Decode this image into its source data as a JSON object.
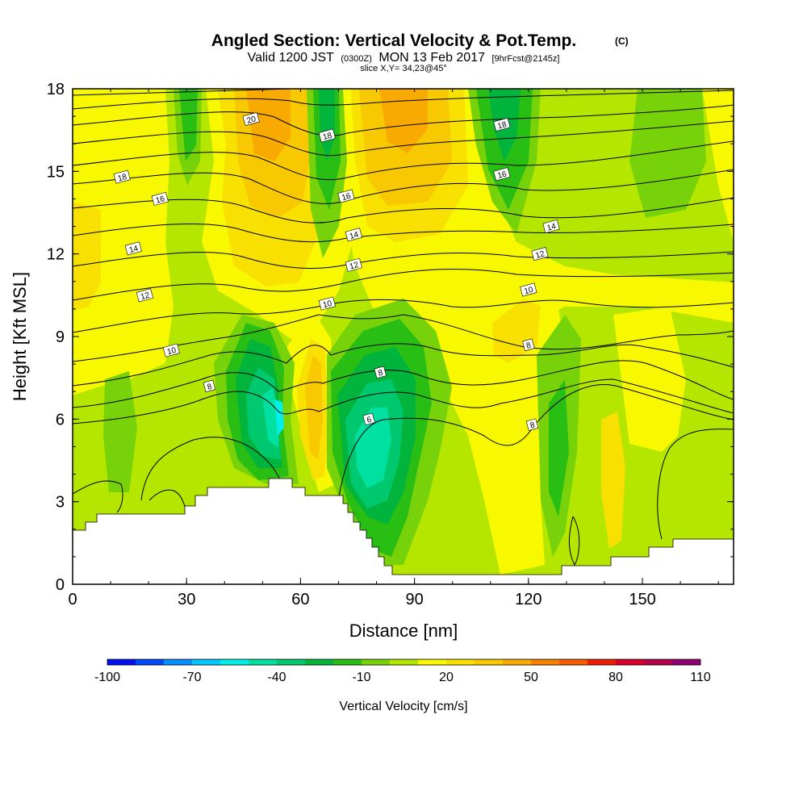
{
  "title": {
    "main": "Angled Section: Vertical Velocity & Pot.Temp.",
    "main_suffix": "(C)",
    "valid_prefix": "Valid 1200 JST",
    "valid_utc": "(0300Z)",
    "valid_date": "MON 13 Feb 2017",
    "forecast": "[9hrFcst@2145z]",
    "slice": "slice X,Y= 34,23@45°"
  },
  "chart_data": {
    "type": "heatmap",
    "xlabel": "Distance [nm]",
    "ylabel": "Height [Kft MSL]",
    "xlim": [
      0,
      174
    ],
    "ylim": [
      0,
      18
    ],
    "x_ticks": [
      0,
      30,
      60,
      90,
      120,
      150
    ],
    "y_ticks": [
      0,
      3,
      6,
      9,
      12,
      15,
      18
    ],
    "colorbar": {
      "title": "Vertical Velocity [cm/s]",
      "tick_labels": [
        "-100",
        "-70",
        "-40",
        "-10",
        "20",
        "50",
        "80",
        "110"
      ],
      "tick_values": [
        -100,
        -70,
        -40,
        -10,
        20,
        50,
        80,
        110
      ],
      "levels": [
        -100,
        -90,
        -80,
        -70,
        -60,
        -50,
        -40,
        -30,
        -20,
        -10,
        0,
        10,
        20,
        30,
        40,
        50,
        60,
        70,
        80,
        90,
        100,
        110
      ],
      "colors": [
        "#0010f0",
        "#0048f8",
        "#0090ff",
        "#00c8ff",
        "#00f0e8",
        "#00e0a0",
        "#00c86e",
        "#00b43c",
        "#28be14",
        "#78d20a",
        "#b4e600",
        "#f8f800",
        "#f8e000",
        "#f8c800",
        "#f8aa00",
        "#f88200",
        "#f85a00",
        "#f01e00",
        "#d80028",
        "#b4004a",
        "#8c0070",
        "#640096"
      ]
    },
    "theta_labels": [
      {
        "text": "20",
        "x": 47,
        "y": 16.9
      },
      {
        "text": "18",
        "x": 13,
        "y": 14.8
      },
      {
        "text": "18",
        "x": 67,
        "y": 16.3
      },
      {
        "text": "18",
        "x": 113,
        "y": 16.7
      },
      {
        "text": "16",
        "x": 23,
        "y": 14.0
      },
      {
        "text": "16",
        "x": 72,
        "y": 14.1
      },
      {
        "text": "16",
        "x": 113,
        "y": 14.9
      },
      {
        "text": "14",
        "x": 16,
        "y": 12.2
      },
      {
        "text": "14",
        "x": 74,
        "y": 12.7
      },
      {
        "text": "14",
        "x": 126,
        "y": 13.0
      },
      {
        "text": "12",
        "x": 19,
        "y": 10.5
      },
      {
        "text": "12",
        "x": 74,
        "y": 11.6
      },
      {
        "text": "12",
        "x": 123,
        "y": 12.0
      },
      {
        "text": "10",
        "x": 26,
        "y": 8.5
      },
      {
        "text": "10",
        "x": 67,
        "y": 10.2
      },
      {
        "text": "10",
        "x": 120,
        "y": 10.7
      },
      {
        "text": "8",
        "x": 36,
        "y": 7.2
      },
      {
        "text": "8",
        "x": 81,
        "y": 7.7
      },
      {
        "text": "8",
        "x": 120,
        "y": 8.7
      },
      {
        "text": "8",
        "x": 121,
        "y": 5.8
      },
      {
        "text": "6",
        "x": 78,
        "y": 6.0
      }
    ]
  }
}
